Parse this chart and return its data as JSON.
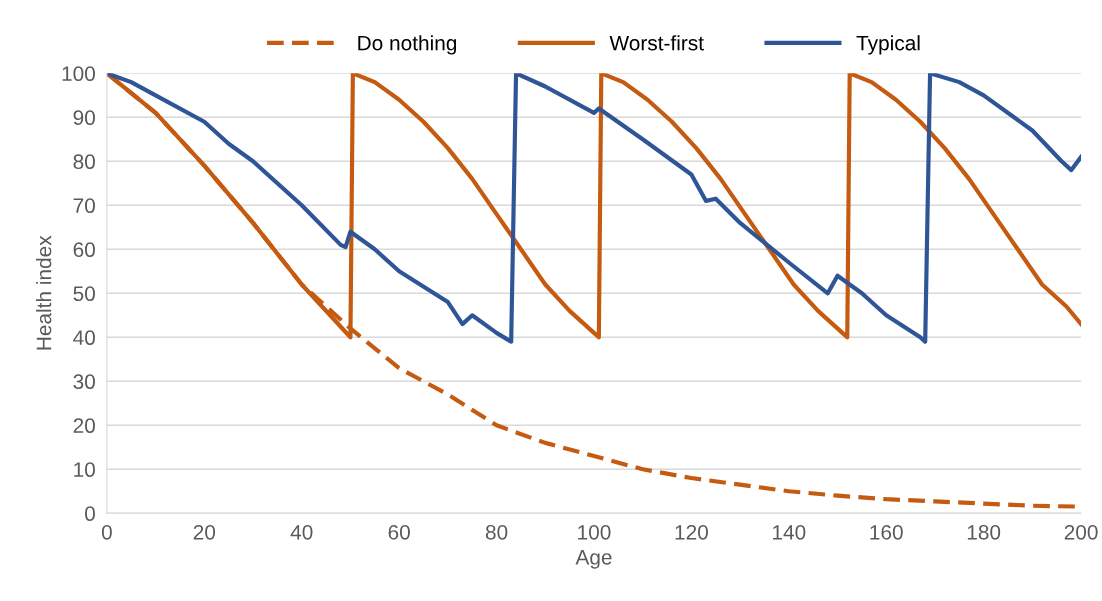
{
  "chart_data": {
    "type": "line",
    "xlabel": "Age",
    "ylabel": "Health index",
    "xlim": [
      0,
      200
    ],
    "ylim": [
      0,
      100
    ],
    "xticks": [
      0,
      20,
      40,
      60,
      80,
      100,
      120,
      140,
      160,
      180,
      200
    ],
    "yticks": [
      0,
      10,
      20,
      30,
      40,
      50,
      60,
      70,
      80,
      90,
      100
    ],
    "grid": "y",
    "legend": "top",
    "marker": "none",
    "series": [
      {
        "name": "Do nothing",
        "color": "#c55a11",
        "line_style": "dashed",
        "x": [
          0,
          10,
          20,
          30,
          40,
          50,
          60,
          70,
          80,
          90,
          100,
          110,
          120,
          130,
          140,
          150,
          160,
          170,
          180,
          190,
          200
        ],
        "values": [
          100,
          91,
          79,
          66,
          52,
          42,
          33,
          27,
          20,
          16,
          13,
          10,
          8,
          6.5,
          5,
          4,
          3.2,
          2.7,
          2.2,
          1.7,
          1.5
        ]
      },
      {
        "name": "Worst-first",
        "color": "#c55a11",
        "line_style": "solid",
        "x": [
          0,
          10,
          20,
          30,
          40,
          50,
          50.5,
          55,
          60,
          65,
          70,
          75,
          80,
          85,
          90,
          95,
          100,
          101,
          101.5,
          106,
          111,
          116,
          121,
          126,
          131,
          136,
          141,
          146,
          151,
          152,
          152.5,
          157,
          162,
          167,
          172,
          177,
          182,
          187,
          192,
          197,
          200
        ],
        "values": [
          100,
          91,
          79,
          66,
          52,
          40,
          100,
          98,
          94,
          89,
          83,
          76,
          68,
          60,
          52,
          46,
          41,
          40,
          100,
          98,
          94,
          89,
          83,
          76,
          68,
          60,
          52,
          46,
          41,
          40,
          100,
          98,
          94,
          89,
          83,
          76,
          68,
          60,
          52,
          47,
          43
        ]
      },
      {
        "name": "Typical",
        "color": "#2f5597",
        "line_style": "solid",
        "x": [
          0,
          5,
          10,
          20,
          25,
          30,
          40,
          48,
          49,
          50,
          55,
          60,
          70,
          73,
          75,
          80,
          83,
          84,
          90,
          100,
          101,
          110,
          120,
          123,
          125,
          130,
          140,
          148,
          150,
          155,
          160,
          167,
          168,
          169,
          175,
          180,
          190,
          196,
          198,
          200
        ],
        "values": [
          100,
          98,
          95,
          89,
          84,
          80,
          70,
          61,
          60.5,
          64,
          60,
          55,
          48,
          43,
          45,
          41,
          39,
          100,
          97,
          91,
          92,
          85,
          77,
          71,
          71.5,
          66,
          57,
          50,
          54,
          50,
          45,
          40,
          39,
          100,
          98,
          95,
          87,
          80,
          78,
          81
        ]
      }
    ]
  }
}
